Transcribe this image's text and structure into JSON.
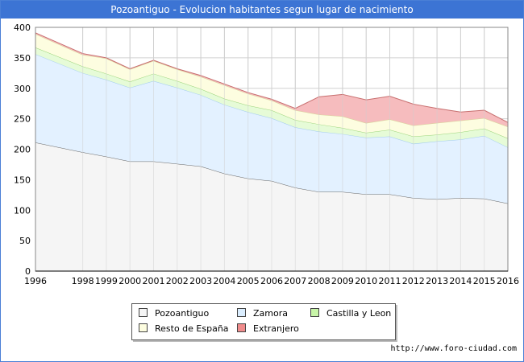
{
  "header": {
    "title": "Pozoantiguo - Evolucion habitantes segun lugar de nacimiento"
  },
  "footer": {
    "url": "http://www.foro-ciudad.com"
  },
  "colors": {
    "Pozoantiguo": "#f5f5f5",
    "Zamora": "#e3f1ff",
    "Castilla y Leon": "#e6fbd7",
    "Resto de España": "#fdfde0",
    "Extranjero": "#f6bcbe",
    "grid": "#d0d0d0",
    "title_bg": "#3c74d4"
  },
  "legend": {
    "items": [
      {
        "label": "Pozoantiguo",
        "color": "#f5f5f5"
      },
      {
        "label": "Zamora",
        "color": "#dbeeff"
      },
      {
        "label": "Castilla y Leon",
        "color": "#c8f5a8"
      },
      {
        "label": "Resto de España",
        "color": "#fdfde0"
      },
      {
        "label": "Extranjero",
        "color": "#f08c8c"
      }
    ]
  },
  "chart_data": {
    "type": "area",
    "stacked": true,
    "title": "Pozoantiguo - Evolucion habitantes segun lugar de nacimiento",
    "xlabel": "",
    "ylabel": "",
    "x": [
      1996,
      1998,
      1999,
      2000,
      2001,
      2002,
      2003,
      2004,
      2005,
      2006,
      2007,
      2008,
      2009,
      2010,
      2011,
      2012,
      2013,
      2014,
      2015,
      2016
    ],
    "ylim": [
      0,
      400
    ],
    "yticks": [
      0,
      50,
      100,
      150,
      200,
      250,
      300,
      350,
      400
    ],
    "grid": true,
    "legend_position": "bottom",
    "series": [
      {
        "name": "Pozoantiguo",
        "values": [
          211,
          195,
          188,
          180,
          180,
          176,
          172,
          160,
          152,
          148,
          137,
          130,
          130,
          126,
          126,
          120,
          118,
          120,
          119,
          111
        ]
      },
      {
        "name": "Zamora",
        "values": [
          145,
          130,
          126,
          121,
          132,
          125,
          117,
          113,
          109,
          103,
          99,
          99,
          95,
          93,
          95,
          89,
          95,
          96,
          103,
          92
        ]
      },
      {
        "name": "Castilla y Leon",
        "values": [
          11,
          11,
          10,
          10,
          12,
          11,
          10,
          10,
          11,
          13,
          12,
          12,
          10,
          8,
          11,
          12,
          11,
          12,
          12,
          15
        ]
      },
      {
        "name": "Resto de España",
        "values": [
          22,
          19,
          25,
          20,
          21,
          19,
          20,
          22,
          19,
          16,
          16,
          16,
          19,
          16,
          17,
          18,
          19,
          19,
          17,
          19
        ]
      },
      {
        "name": "Extranjero",
        "values": [
          2,
          2,
          1,
          1,
          1,
          1,
          2,
          2,
          2,
          2,
          3,
          29,
          36,
          38,
          38,
          35,
          24,
          14,
          13,
          7
        ]
      }
    ]
  }
}
